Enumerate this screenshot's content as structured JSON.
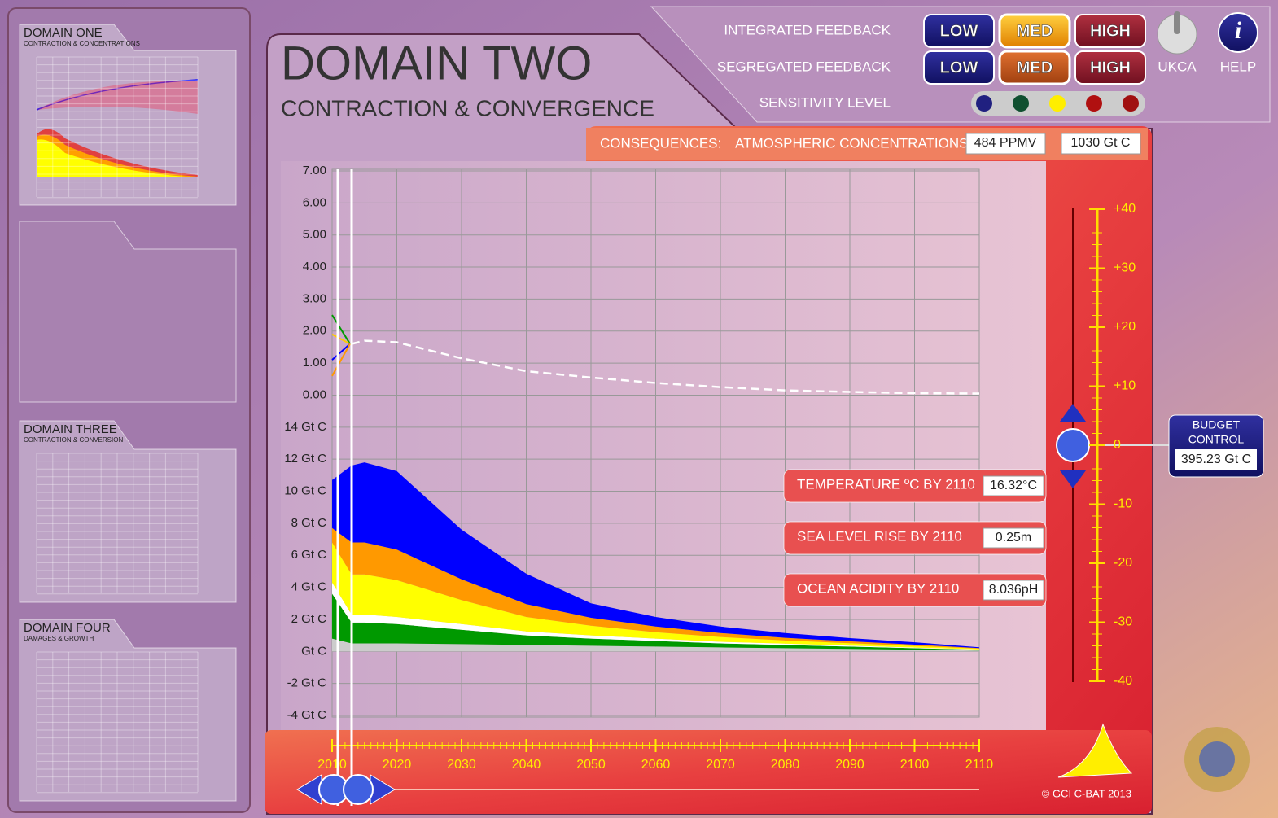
{
  "sidebar": {
    "domains": [
      {
        "title": "DOMAIN ONE",
        "subtitle": "CONTRACTION & CONCENTRATIONS"
      },
      {
        "title": "DOMAIN THREE",
        "subtitle": "CONTRACTION & CONVERSION"
      },
      {
        "title": "DOMAIN FOUR",
        "subtitle": "DAMAGES & GROWTH"
      }
    ]
  },
  "header": {
    "title": "DOMAIN TWO",
    "subtitle": "CONTRACTION & CONVERGENCE"
  },
  "controls": {
    "rows": [
      {
        "label": "INTEGRATED FEEDBACK",
        "buttons": [
          "LOW",
          "MED",
          "HIGH"
        ],
        "selected": 1
      },
      {
        "label": "SEGREGATED FEEDBACK",
        "buttons": [
          "LOW",
          "MED",
          "HIGH"
        ],
        "selected": 1
      }
    ],
    "sensitivity_label": "SENSITIVITY LEVEL",
    "ukca": "UKCA",
    "help": "HELP"
  },
  "consequences": {
    "label": "CONSEQUENCES:",
    "concentrations": "ATMOSPHERIC CONCENTRATIONS",
    "ppmv": "484 PPMV",
    "carbon": "1030 Gt C"
  },
  "results": [
    {
      "label": "TEMPERATURE  ºC BY 2110",
      "value": "16.32°C"
    },
    {
      "label": "SEA LEVEL RISE  BY 2110",
      "value": "0.25m"
    },
    {
      "label": "OCEAN ACIDITY  BY 2110",
      "value": "8.036pH"
    }
  ],
  "budget": {
    "title": [
      "BUDGET",
      "CONTROL"
    ],
    "value": "395.23 Gt C",
    "lim": [
      -40,
      40
    ],
    "ticks": [
      {
        "value": 40,
        "label": "+40"
      },
      {
        "value": 30,
        "label": "+30"
      },
      {
        "value": 20,
        "label": "+20"
      },
      {
        "value": 10,
        "label": "+10"
      },
      0,
      -10,
      -20,
      -30,
      -40
    ]
  },
  "chart": {
    "upper_ticks": [
      {
        "value": 7,
        "label": "7.00"
      },
      {
        "value": 6,
        "label": "6.00"
      },
      {
        "value": 5,
        "label": "5.00"
      },
      {
        "value": 4,
        "label": "4.00"
      },
      {
        "value": 3,
        "label": "3.00"
      },
      {
        "value": 2,
        "label": "2.00"
      },
      {
        "value": 1,
        "label": "1.00"
      },
      {
        "value": 0,
        "label": "0.00"
      }
    ],
    "lower_ticks": [
      {
        "value": 14,
        "label": "14 Gt C"
      },
      {
        "value": 12,
        "label": "12 Gt C"
      },
      {
        "value": 10,
        "label": "10 Gt C"
      },
      {
        "value": 8,
        "label": "8 Gt C"
      },
      {
        "value": 6,
        "label": "6 Gt C"
      },
      {
        "value": 4,
        "label": "4 Gt C"
      },
      {
        "value": 2,
        "label": "2 Gt C"
      },
      {
        "value": 0,
        "label": "Gt C"
      },
      {
        "value": -2,
        "label": "-2 Gt C"
      },
      {
        "value": -4,
        "label": "-4 Gt C"
      }
    ],
    "xlim": [
      2010,
      2110
    ],
    "xticks": [
      2010,
      2020,
      2030,
      2040,
      2050,
      2060,
      2070,
      2080,
      2090,
      2100,
      2110
    ],
    "temperature": {
      "color": "#ffffff",
      "x": [
        2013,
        2015,
        2020,
        2030,
        2040,
        2050,
        2060,
        2070,
        2080,
        2090,
        2100,
        2110
      ],
      "values": [
        1.6,
        1.7,
        1.65,
        1.15,
        0.75,
        0.55,
        0.38,
        0.25,
        0.15,
        0.1,
        0.06,
        0.05
      ]
    },
    "x": [
      2010,
      2013,
      2015,
      2020,
      2030,
      2040,
      2050,
      2060,
      2070,
      2080,
      2090,
      2100,
      2110
    ],
    "series": [
      {
        "color": "#cccccc",
        "values": [
          0.8,
          0.5,
          0.5,
          0.5,
          0.45,
          0.4,
          0.35,
          0.3,
          0.25,
          0.2,
          0.15,
          0.1,
          0.05
        ]
      },
      {
        "color": "#009900",
        "values": [
          2.8,
          1.3,
          1.3,
          1.2,
          0.9,
          0.6,
          0.45,
          0.35,
          0.25,
          0.2,
          0.15,
          0.1,
          0.05
        ]
      },
      {
        "color": "#ffffff",
        "values": [
          0.7,
          0.5,
          0.5,
          0.45,
          0.35,
          0.25,
          0.2,
          0.15,
          0.1,
          0.08,
          0.06,
          0.04,
          0.02
        ]
      },
      {
        "color": "#ffff00",
        "values": [
          2.5,
          2.5,
          2.5,
          2.3,
          1.5,
          0.9,
          0.6,
          0.4,
          0.3,
          0.2,
          0.15,
          0.1,
          0.05
        ]
      },
      {
        "color": "#ff9900",
        "values": [
          0.9,
          2,
          2,
          1.9,
          1.3,
          0.8,
          0.5,
          0.35,
          0.25,
          0.17,
          0.12,
          0.08,
          0.04
        ]
      },
      {
        "color": "#0000ff",
        "values": [
          3,
          4.8,
          5,
          4.9,
          3.1,
          1.9,
          0.9,
          0.6,
          0.4,
          0.3,
          0.2,
          0.15,
          0.05
        ]
      }
    ]
  },
  "footer": {
    "copyright": "©  GCI C-BAT 2013"
  }
}
